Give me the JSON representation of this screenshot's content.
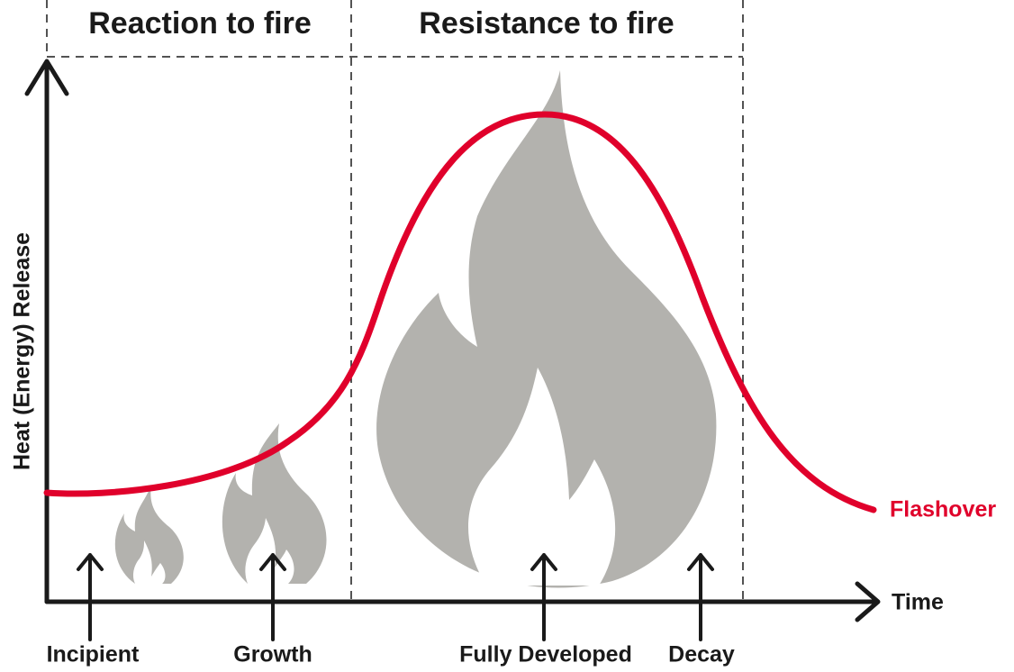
{
  "sections": [
    {
      "label": "Reaction to fire"
    },
    {
      "label": "Resistance to fire"
    }
  ],
  "axes": {
    "y_label": "Heat (Energy) Release",
    "x_label": "Time"
  },
  "stages": [
    {
      "label": "Incipient"
    },
    {
      "label": "Growth"
    },
    {
      "label": "Fully Developed"
    },
    {
      "label": "Decay"
    }
  ],
  "curve": {
    "label": "Flashover"
  }
}
